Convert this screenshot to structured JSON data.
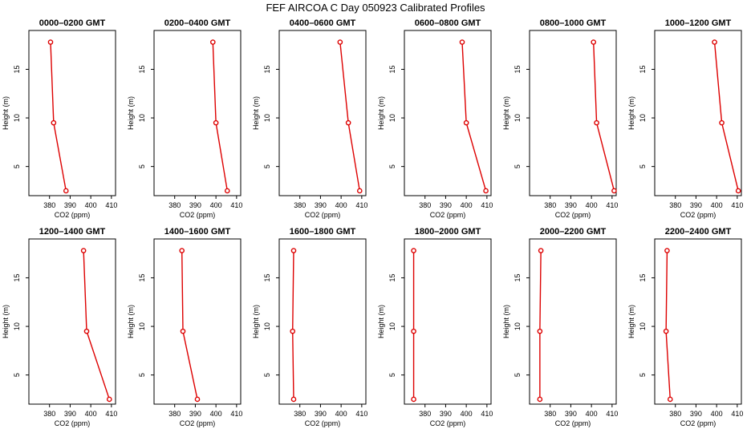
{
  "figure_title": "FEF AIRCOA C  Day 050923  Calibrated Profiles",
  "colors": {
    "series": "#dd0000",
    "axis": "#000000",
    "background": "#ffffff"
  },
  "chart_data": [
    {
      "type": "line",
      "title": "0000–0200 GMT",
      "xlabel": "CO2 (ppm)",
      "ylabel": "Height (m)",
      "xlim": [
        370,
        412
      ],
      "ylim": [
        2,
        19
      ],
      "xticks": [
        380,
        390,
        400,
        410
      ],
      "yticks": [
        5,
        10,
        15
      ],
      "x": [
        380.5,
        382.0,
        388.0
      ],
      "y": [
        17.8,
        9.5,
        2.5
      ]
    },
    {
      "type": "line",
      "title": "0200–0400 GMT",
      "xlabel": "CO2 (ppm)",
      "ylabel": "Height (m)",
      "xlim": [
        370,
        412
      ],
      "ylim": [
        2,
        19
      ],
      "xticks": [
        380,
        390,
        400,
        410
      ],
      "yticks": [
        5,
        10,
        15
      ],
      "x": [
        398.5,
        400.0,
        405.5
      ],
      "y": [
        17.8,
        9.5,
        2.5
      ]
    },
    {
      "type": "line",
      "title": "0400–0600 GMT",
      "xlabel": "CO2 (ppm)",
      "ylabel": "Height (m)",
      "xlim": [
        370,
        412
      ],
      "ylim": [
        2,
        19
      ],
      "xticks": [
        380,
        390,
        400,
        410
      ],
      "yticks": [
        5,
        10,
        15
      ],
      "x": [
        399.5,
        403.5,
        409.0
      ],
      "y": [
        17.8,
        9.5,
        2.5
      ]
    },
    {
      "type": "line",
      "title": "0600–0800 GMT",
      "xlabel": "CO2 (ppm)",
      "ylabel": "Height (m)",
      "xlim": [
        370,
        412
      ],
      "ylim": [
        2,
        19
      ],
      "xticks": [
        380,
        390,
        400,
        410
      ],
      "yticks": [
        5,
        10,
        15
      ],
      "x": [
        398.0,
        400.0,
        409.5
      ],
      "y": [
        17.8,
        9.5,
        2.5
      ]
    },
    {
      "type": "line",
      "title": "0800–1000 GMT",
      "xlabel": "CO2 (ppm)",
      "ylabel": "Height (m)",
      "xlim": [
        370,
        412
      ],
      "ylim": [
        2,
        19
      ],
      "xticks": [
        380,
        390,
        400,
        410
      ],
      "yticks": [
        5,
        10,
        15
      ],
      "x": [
        401.0,
        402.5,
        411.0
      ],
      "y": [
        17.8,
        9.5,
        2.5
      ]
    },
    {
      "type": "line",
      "title": "1000–1200 GMT",
      "xlabel": "CO2 (ppm)",
      "ylabel": "Height (m)",
      "xlim": [
        370,
        412
      ],
      "ylim": [
        2,
        19
      ],
      "xticks": [
        380,
        390,
        400,
        410
      ],
      "yticks": [
        5,
        10,
        15
      ],
      "x": [
        399.0,
        402.5,
        410.5
      ],
      "y": [
        17.8,
        9.5,
        2.5
      ]
    },
    {
      "type": "line",
      "title": "1200–1400 GMT",
      "xlabel": "CO2 (ppm)",
      "ylabel": "Height (m)",
      "xlim": [
        370,
        412
      ],
      "ylim": [
        2,
        19
      ],
      "xticks": [
        380,
        390,
        400,
        410
      ],
      "yticks": [
        5,
        10,
        15
      ],
      "x": [
        396.5,
        398.0,
        409.0
      ],
      "y": [
        17.8,
        9.5,
        2.5
      ]
    },
    {
      "type": "line",
      "title": "1400–1600 GMT",
      "xlabel": "CO2 (ppm)",
      "ylabel": "Height (m)",
      "xlim": [
        370,
        412
      ],
      "ylim": [
        2,
        19
      ],
      "xticks": [
        380,
        390,
        400,
        410
      ],
      "yticks": [
        5,
        10,
        15
      ],
      "x": [
        383.5,
        384.0,
        391.0
      ],
      "y": [
        17.8,
        9.5,
        2.5
      ]
    },
    {
      "type": "line",
      "title": "1600–1800 GMT",
      "xlabel": "CO2 (ppm)",
      "ylabel": "Height (m)",
      "xlim": [
        370,
        412
      ],
      "ylim": [
        2,
        19
      ],
      "xticks": [
        380,
        390,
        400,
        410
      ],
      "yticks": [
        5,
        10,
        15
      ],
      "x": [
        377.0,
        376.5,
        377.0
      ],
      "y": [
        17.8,
        9.5,
        2.5
      ]
    },
    {
      "type": "line",
      "title": "1800–2000 GMT",
      "xlabel": "CO2 (ppm)",
      "ylabel": "Height (m)",
      "xlim": [
        370,
        412
      ],
      "ylim": [
        2,
        19
      ],
      "xticks": [
        380,
        390,
        400,
        410
      ],
      "yticks": [
        5,
        10,
        15
      ],
      "x": [
        374.5,
        374.5,
        374.5
      ],
      "y": [
        17.8,
        9.5,
        2.5
      ]
    },
    {
      "type": "line",
      "title": "2000–2200 GMT",
      "xlabel": "CO2 (ppm)",
      "ylabel": "Height (m)",
      "xlim": [
        370,
        412
      ],
      "ylim": [
        2,
        19
      ],
      "xticks": [
        380,
        390,
        400,
        410
      ],
      "yticks": [
        5,
        10,
        15
      ],
      "x": [
        375.5,
        375.0,
        375.0
      ],
      "y": [
        17.8,
        9.5,
        2.5
      ]
    },
    {
      "type": "line",
      "title": "2200–2400 GMT",
      "xlabel": "CO2 (ppm)",
      "ylabel": "Height (m)",
      "xlim": [
        370,
        412
      ],
      "ylim": [
        2,
        19
      ],
      "xticks": [
        380,
        390,
        400,
        410
      ],
      "yticks": [
        5,
        10,
        15
      ],
      "x": [
        376.0,
        375.5,
        377.5
      ],
      "y": [
        17.8,
        9.5,
        2.5
      ]
    }
  ]
}
